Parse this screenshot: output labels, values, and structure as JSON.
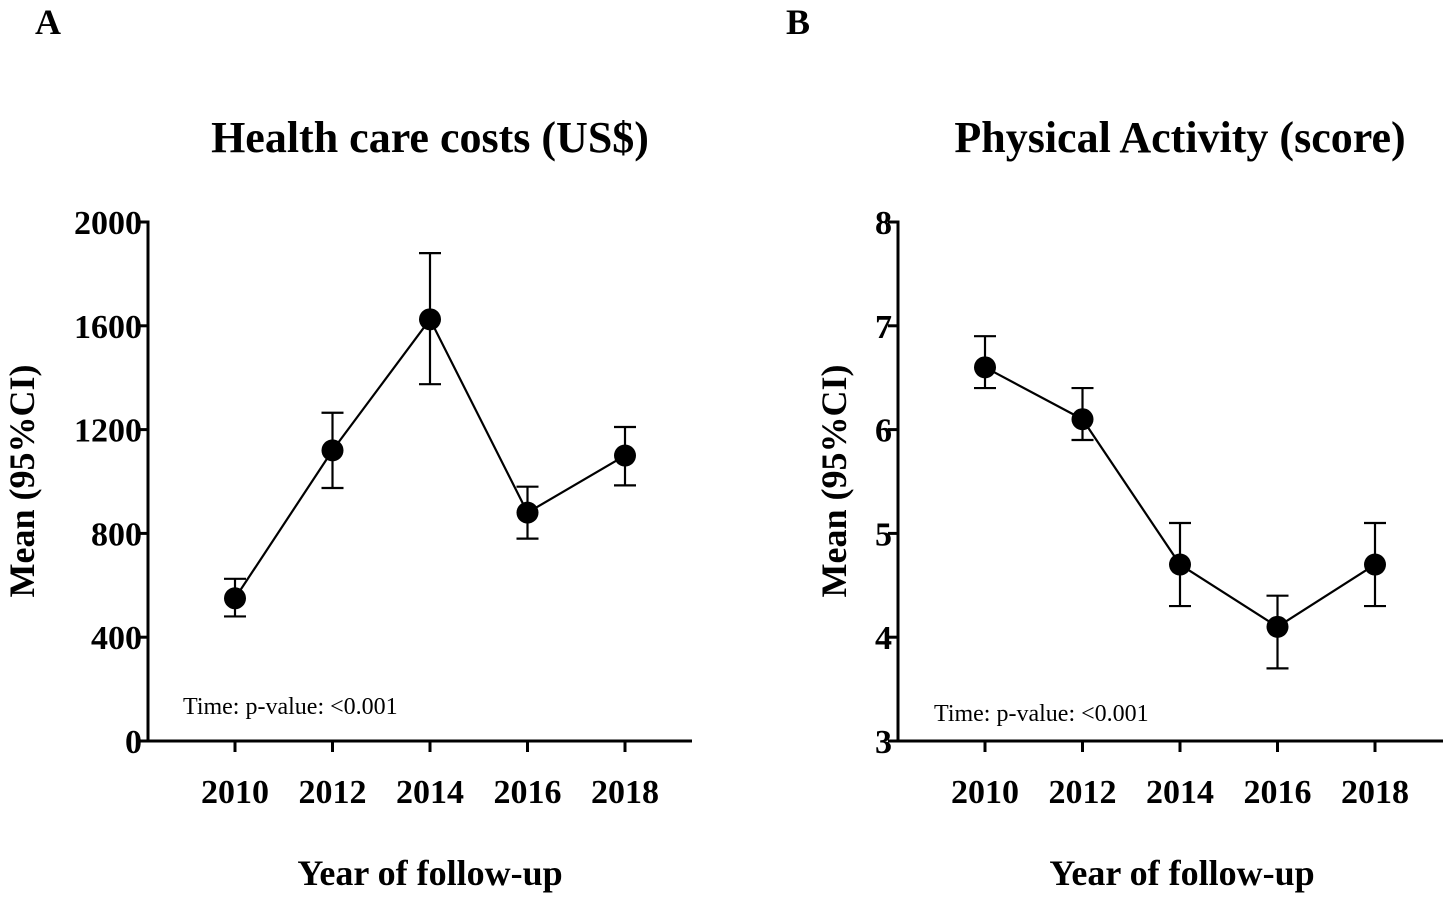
{
  "chart_data": [
    {
      "type": "line",
      "panel": "A",
      "title": "Health care costs (US$)",
      "xlabel": "Year of follow-up",
      "ylabel": "Mean (95%CI)",
      "categories": [
        "2010",
        "2012",
        "2014",
        "2016",
        "2018"
      ],
      "series": [
        {
          "values": [
            550,
            1120,
            1625,
            880,
            1100
          ],
          "ci_lower": [
            480,
            975,
            1375,
            780,
            985
          ],
          "ci_upper": [
            625,
            1265,
            1880,
            980,
            1210
          ]
        }
      ],
      "ylim": [
        0,
        2000
      ],
      "yticks": [
        "0",
        "400",
        "800",
        "1200",
        "1600",
        "2000"
      ],
      "grid": false,
      "annotation": "Time: p-value: <0.001"
    },
    {
      "type": "line",
      "panel": "B",
      "title": "Physical Activity (score)",
      "xlabel": "Year of follow-up",
      "ylabel": "Mean (95%CI)",
      "categories": [
        "2010",
        "2012",
        "2014",
        "2016",
        "2018"
      ],
      "series": [
        {
          "values": [
            6.6,
            6.1,
            4.7,
            4.1,
            4.7
          ],
          "ci_lower": [
            6.4,
            5.9,
            4.3,
            3.7,
            4.3
          ],
          "ci_upper": [
            6.9,
            6.4,
            5.1,
            4.4,
            5.1
          ]
        }
      ],
      "ylim": [
        3,
        8
      ],
      "yticks": [
        "3",
        "4",
        "5",
        "6",
        "7",
        "8"
      ],
      "grid": false,
      "annotation": "Time: p-value: <0.001"
    }
  ]
}
